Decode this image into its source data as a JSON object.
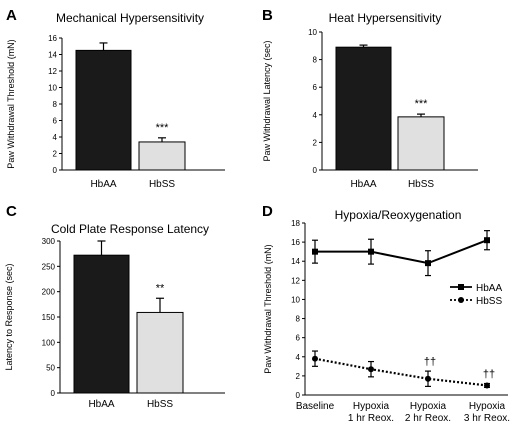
{
  "colors": {
    "hbaa": "#1a1a1a",
    "hbss": "#e0e0e0",
    "axis": "#000000"
  },
  "chart_data": [
    {
      "panel": "A",
      "type": "bar",
      "title": "Mechanical Hypersensitivity",
      "ylabel": "Paw Withdrawal Threshold (mN)",
      "categories": [
        "HbAA",
        "HbSS"
      ],
      "values": [
        14.5,
        3.4
      ],
      "errors": [
        0.9,
        0.5
      ],
      "ylim": [
        0,
        16
      ],
      "yticks": [
        0,
        2,
        4,
        6,
        8,
        10,
        12,
        14,
        16
      ],
      "annotations": [
        "",
        "***"
      ]
    },
    {
      "panel": "B",
      "type": "bar",
      "title": "Heat Hypersensitivity",
      "ylabel": "Paw Withdrawal Latency (sec)",
      "categories": [
        "HbAA",
        "HbSS"
      ],
      "values": [
        8.9,
        3.85
      ],
      "errors": [
        0.15,
        0.2
      ],
      "ylim": [
        0,
        10
      ],
      "yticks": [
        0,
        2,
        4,
        6,
        8,
        10
      ],
      "annotations": [
        "",
        "***"
      ]
    },
    {
      "panel": "C",
      "type": "bar",
      "title": "Cold Plate Response Latency",
      "ylabel": "Latency to Response (sec)",
      "categories": [
        "HbAA",
        "HbSS"
      ],
      "values": [
        272,
        159
      ],
      "errors": [
        28,
        28
      ],
      "ylim": [
        0,
        300
      ],
      "yticks": [
        0,
        50,
        100,
        150,
        200,
        250,
        300
      ],
      "annotations": [
        "",
        "**"
      ]
    },
    {
      "panel": "D",
      "type": "line",
      "title": "Hypoxia/Reoxygenation",
      "ylabel": "Paw Withdrawal Threshold (mN)",
      "categories": [
        [
          "Baseline"
        ],
        [
          "Hypoxia",
          "1 hr Reox."
        ],
        [
          "Hypoxia",
          "2 hr Reox."
        ],
        [
          "Hypoxia",
          "3 hr Reox."
        ]
      ],
      "ylim": [
        0,
        18
      ],
      "yticks": [
        0,
        2,
        4,
        6,
        8,
        10,
        12,
        14,
        16,
        18
      ],
      "legend_position": "right",
      "series": [
        {
          "name": "HbAA",
          "values": [
            15.0,
            15.0,
            13.8,
            16.2
          ],
          "errors": [
            1.2,
            1.3,
            1.3,
            1.0
          ],
          "marker": "square",
          "line": "solid"
        },
        {
          "name": "HbSS",
          "values": [
            3.8,
            2.7,
            1.7,
            1.0
          ],
          "errors": [
            0.8,
            0.8,
            0.8,
            0.2
          ],
          "marker": "circle",
          "line": "dotted"
        }
      ],
      "annotations": [
        "",
        "",
        "††",
        "††"
      ]
    }
  ]
}
